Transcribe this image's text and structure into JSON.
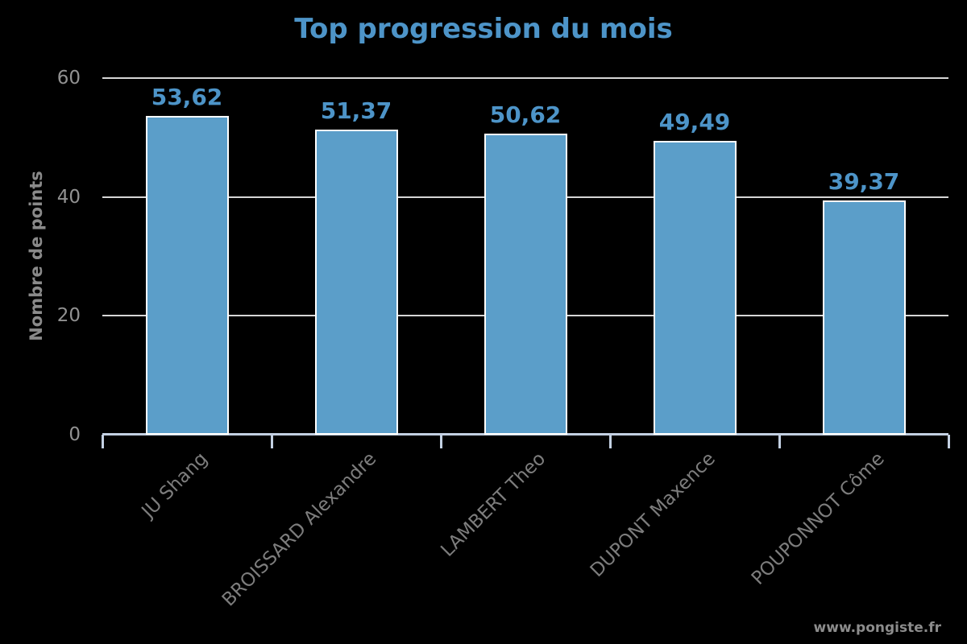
{
  "page": {
    "watermark": "www.pongiste.fr"
  },
  "chart_data": {
    "type": "bar",
    "title": "Top progression du mois",
    "ylabel": "Nombre de points",
    "xlabel": "",
    "categories": [
      "JU Shang",
      "BROISSARD Alexandre",
      "LAMBERT Theo",
      "DUPONT Maxence",
      "POUPONNOT Côme"
    ],
    "values": [
      53.62,
      51.37,
      50.62,
      49.49,
      39.37
    ],
    "value_labels": [
      "53,62",
      "51,37",
      "50,62",
      "49,49",
      "39,37"
    ],
    "ylim": [
      0,
      60
    ],
    "yticks": [
      0,
      20,
      40,
      60
    ],
    "grid": "horizontal",
    "legend": "none",
    "colors": {
      "background": "#000000",
      "bar_fill": "#5b9ec9",
      "bar_edge": "#ffffff",
      "gridline": "#d6d6d6",
      "axis": "#c3d0e2",
      "accent_blue": "#4d94c8",
      "tick_label_gray": "#919191",
      "category_label_gray": "#7d7d7d",
      "watermark_gray": "#8c8c8c"
    }
  }
}
